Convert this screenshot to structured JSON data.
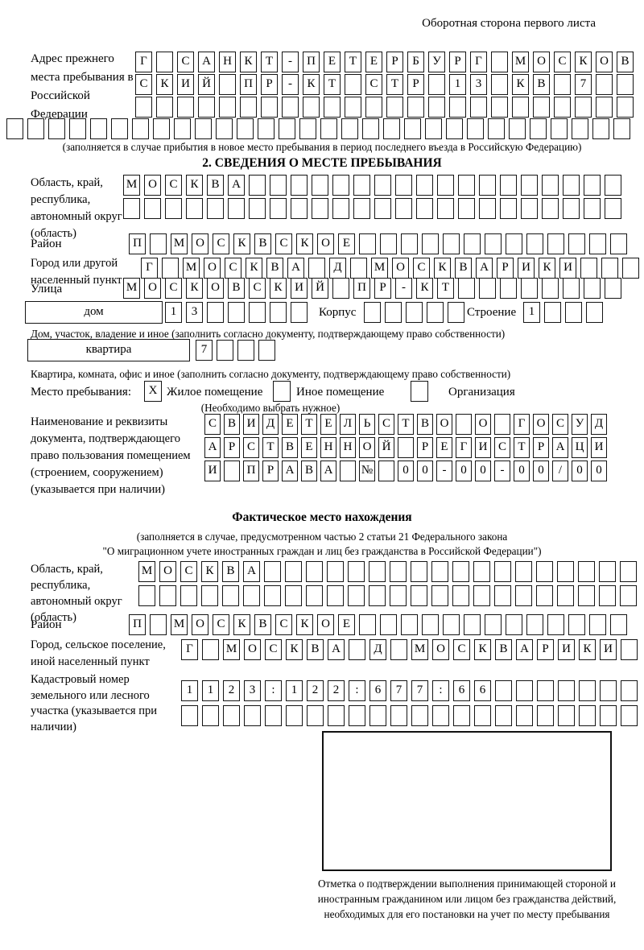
{
  "header": {
    "note": "Оборотная сторона первого листа"
  },
  "prev_address": {
    "label": "Адрес прежнего места пребывания в Российской Федерации",
    "row1": {
      "t": "Г САНКТ-ПЕТЕРБУРГ МОСКОВ",
      "n": 24
    },
    "row2": {
      "t": "СКИЙ ПР-КТ СТР 13 КВ 7",
      "n": 24
    },
    "row3": {
      "t": "",
      "n": 24
    },
    "row4": {
      "t": "",
      "n": 30
    },
    "note": "(заполняется в случае прибытия в новое место пребывания в период последнего въезда в Российскую Федерацию)"
  },
  "section2": {
    "title": "2. СВЕДЕНИЯ О МЕСТЕ ПРЕБЫВАНИЯ",
    "region": {
      "label": "Область, край, республика, автономный округ (область)",
      "row1": {
        "t": "МОСКВА",
        "n": 24
      },
      "row2": {
        "t": "",
        "n": 24
      }
    },
    "district": {
      "label": "Район",
      "row": {
        "t": "П МОСКВСКОЕ",
        "n": 24
      }
    },
    "city": {
      "label": "Город или другой населенный пункт",
      "row": {
        "t": "Г МОСКВА Д МОСКВАРИКИ",
        "n": 24
      }
    },
    "street": {
      "label": "Улица",
      "row": {
        "t": "МОСКОВСКИЙ ПР-КТ",
        "n": 24
      }
    },
    "house": {
      "box_label": "дом",
      "row": {
        "t": "13",
        "n": 7
      },
      "korpus_label": "Корпус",
      "korpus_row": {
        "t": "",
        "n": 5
      },
      "stroenie_label": "Строение",
      "stroenie_row": {
        "t": "1",
        "n": 4
      },
      "note": "Дом, участок, владение и иное (заполнить согласно документу, подтверждающему право собственности)"
    },
    "apartment": {
      "box_label": "квартира",
      "row": {
        "t": "7",
        "n": 4
      },
      "note": "Квартира, комната, офис и иное (заполнить согласно документу, подтверждающему право собственности)"
    },
    "stay": {
      "label": "Место пребывания:",
      "opt1_mark": "X",
      "opt1": "Жилое помещение",
      "opt2_mark": "",
      "opt2": "Иное помещение",
      "opt3_mark": "",
      "opt3": "Организация",
      "note": "(Необходимо выбрать нужное)"
    },
    "document": {
      "label": "Наименование и реквизиты документа, подтверждающего право пользования помещением (строением, сооружением) (указывается при наличии)",
      "row1": {
        "t": "СВИДЕТЕЛЬСТВО О ГОСУД",
        "n": 21
      },
      "row2": {
        "t": "АРСТВЕННОЙ РЕГИСТРАЦИ",
        "n": 21
      },
      "row3": {
        "t": "И ПРАВА № 00-00-00/000",
        "n": 21
      }
    }
  },
  "actual": {
    "title": "Фактическое место нахождения",
    "note1": "(заполняется в случае, предусмотренном частью 2 статьи 21 Федерального закона",
    "note2": "\"О миграционном учете иностранных граждан и лиц без гражданства в Российской Федерации\")",
    "region": {
      "label": "Область, край, республика, автономный округ (область)",
      "row1": {
        "t": "МОСКВА",
        "n": 24
      },
      "row2": {
        "t": "",
        "n": 24
      }
    },
    "district": {
      "label": "Район",
      "row": {
        "t": "П МОСКВСКОЕ",
        "n": 24
      }
    },
    "city": {
      "label": "Город, сельское поселение, иной населенный пункт",
      "row": {
        "t": "Г МОСКВА Д МОСКВАРИКИ",
        "n": 22
      }
    },
    "cadastral": {
      "label": "Кадастровый номер земельного или лесного участка (указывается при наличии)",
      "row1": {
        "t": "1123:122:677:66",
        "n": 22
      },
      "row2": {
        "t": "",
        "n": 22
      }
    },
    "mark_note": "Отметка о подтверждении выполнения принимающей стороной и иностранным гражданином или лицом без гражданства действий, необходимых для его постановки на учет по месту пребывания"
  }
}
